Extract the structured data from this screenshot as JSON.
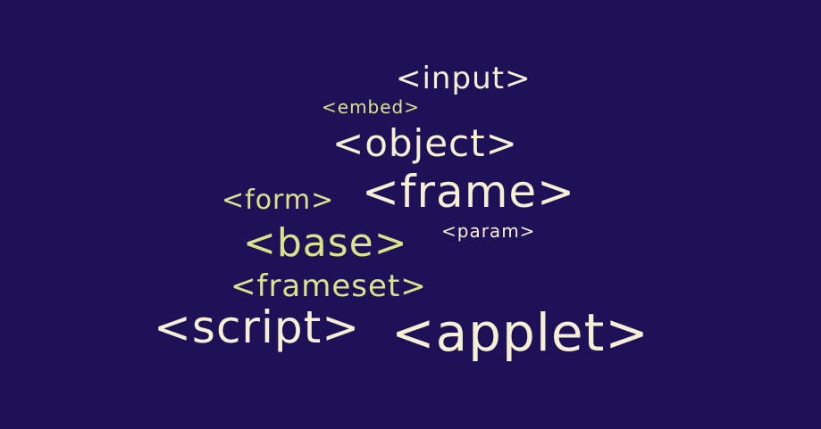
{
  "colors": {
    "background": "#1f1158",
    "primary_text": "#f5f0d4",
    "accent_text": "#dbe38a"
  },
  "words": {
    "input": "<input>",
    "embed": "<embed>",
    "object": "<object>",
    "form": "<form>",
    "frame": "<frame>",
    "base": "<base>",
    "param": "<param>",
    "frameset": "<frameset>",
    "script": "<script>",
    "applet": "<applet>"
  }
}
